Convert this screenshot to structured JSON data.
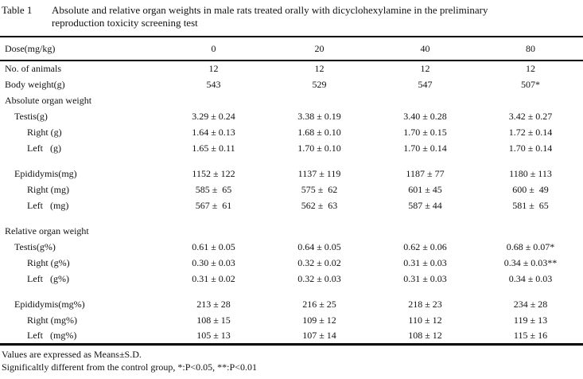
{
  "title": {
    "label": "Table 1",
    "caption_line1": "Absolute and relative organ weights in male rats treated orally with dicyclohexylamine in the preliminary",
    "caption_line2": "reproduction toxicity screening test"
  },
  "table": {
    "header_label": "Dose(mg/kg)",
    "columns": [
      "0",
      "20",
      "40",
      "80"
    ],
    "rows": [
      {
        "label": "No. of animals",
        "indent": 0,
        "values": [
          "12",
          "12",
          "12",
          "12"
        ]
      },
      {
        "label": "Body weight(g)",
        "indent": 0,
        "values": [
          "543",
          "529",
          "547",
          "507*"
        ]
      },
      {
        "label": "Absolute organ weight",
        "indent": 0,
        "section": true,
        "values": [
          "",
          "",
          "",
          ""
        ]
      },
      {
        "label": "Testis(g)",
        "indent": 1,
        "values": [
          "3.29 ± 0.24",
          "3.38 ± 0.19",
          "3.40 ± 0.28",
          "3.42 ± 0.27"
        ]
      },
      {
        "label": "Right (g)",
        "indent": 2,
        "values": [
          "1.64 ± 0.13",
          "1.68 ± 0.10",
          "1.70 ± 0.15",
          "1.72 ± 0.14"
        ]
      },
      {
        "label": "Left   (g)",
        "indent": 2,
        "values": [
          "1.65 ± 0.11",
          "1.70 ± 0.10",
          "1.70 ± 0.14",
          "1.70 ± 0.14"
        ]
      },
      {
        "spacer": true
      },
      {
        "label": "Epididymis(mg)",
        "indent": 1,
        "values": [
          "1152 ± 122",
          "1137 ± 119",
          "1187 ± 77",
          "1180 ± 113"
        ]
      },
      {
        "label": "Right (mg)",
        "indent": 2,
        "values": [
          "585 ±  65",
          "575 ±  62",
          "601 ± 45",
          "600 ±  49"
        ]
      },
      {
        "label": "Left   (mg)",
        "indent": 2,
        "values": [
          "567 ±  61",
          "562 ±  63",
          "587 ± 44",
          "581 ±  65"
        ]
      },
      {
        "spacer": true
      },
      {
        "label": "Relative organ weight",
        "indent": 0,
        "section": true,
        "values": [
          "",
          "",
          "",
          ""
        ]
      },
      {
        "label": "Testis(g%)",
        "indent": 1,
        "values": [
          "0.61 ± 0.05",
          "0.64 ± 0.05",
          "0.62 ± 0.06",
          "0.68 ± 0.07*"
        ]
      },
      {
        "label": "Right (g%)",
        "indent": 2,
        "values": [
          "0.30 ± 0.03",
          "0.32 ± 0.02",
          "0.31 ± 0.03",
          "0.34 ± 0.03**"
        ]
      },
      {
        "label": "Left   (g%)",
        "indent": 2,
        "values": [
          "0.31 ± 0.02",
          "0.32 ± 0.03",
          "0.31 ± 0.03",
          "0.34 ± 0.03"
        ]
      },
      {
        "spacer": true
      },
      {
        "label": "Epididymis(mg%)",
        "indent": 1,
        "values": [
          "213 ± 28",
          "216 ± 25",
          "218 ± 23",
          "234 ± 28"
        ]
      },
      {
        "label": "Right (mg%)",
        "indent": 2,
        "values": [
          "108 ± 15",
          "109 ± 12",
          "110 ± 12",
          "119 ± 13"
        ]
      },
      {
        "label": "Left   (mg%)",
        "indent": 2,
        "values": [
          "105 ± 13",
          "107 ± 14",
          "108 ± 12",
          "115 ± 16"
        ]
      }
    ]
  },
  "footnotes": [
    "Values are expressed as Means±S.D.",
    "Significaltly different from the control group, *:P<0.05, **:P<0.01"
  ]
}
